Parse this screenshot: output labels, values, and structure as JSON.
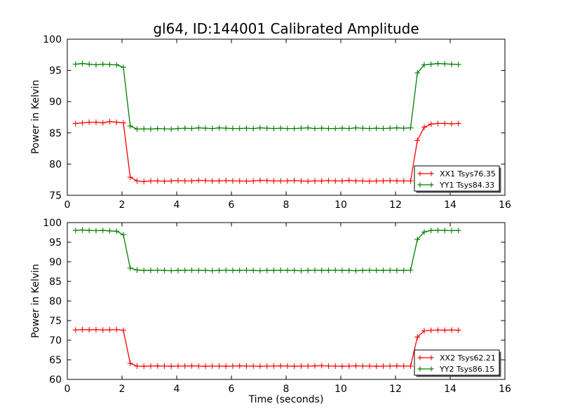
{
  "title": "gl64, ID:144001 Calibrated Amplitude",
  "xlabel": "Time (seconds)",
  "colors": {
    "xx_line": "#ff0000",
    "yy_line": "#008000",
    "axis": "#000000",
    "background": "#ffffff",
    "legend_shadow": "#555555"
  },
  "chart_data": [
    {
      "type": "line",
      "subplot": "top",
      "ylabel": "Power in Kelvin",
      "xlim": [
        0,
        16
      ],
      "ylim": [
        75,
        100
      ],
      "xticks": [
        0,
        2,
        4,
        6,
        8,
        10,
        12,
        14,
        16
      ],
      "yticks": [
        75,
        80,
        85,
        90,
        95,
        100
      ],
      "grid": false,
      "legend_position": "lower right",
      "marker": "plus",
      "x": [
        0.3,
        0.55,
        0.8,
        1.05,
        1.3,
        1.55,
        1.8,
        2.05,
        2.3,
        2.55,
        2.8,
        3.05,
        3.3,
        3.55,
        3.8,
        4.05,
        4.3,
        4.55,
        4.8,
        5.05,
        5.3,
        5.55,
        5.8,
        6.05,
        6.3,
        6.55,
        6.8,
        7.05,
        7.3,
        7.55,
        7.8,
        8.05,
        8.3,
        8.55,
        8.8,
        9.05,
        9.3,
        9.55,
        9.8,
        10.05,
        10.3,
        10.55,
        10.8,
        11.05,
        11.3,
        11.55,
        11.8,
        12.05,
        12.3,
        12.55,
        12.8,
        13.05,
        13.3,
        13.55,
        13.8,
        14.05,
        14.3
      ],
      "series": [
        {
          "name": "XX1",
          "legend": "XX1 Tsys76.35",
          "tsys": 76.35,
          "color": "#ff0000",
          "values": [
            86.5,
            86.6,
            86.7,
            86.7,
            86.6,
            86.8,
            86.7,
            86.6,
            77.9,
            77.3,
            77.2,
            77.3,
            77.3,
            77.25,
            77.3,
            77.35,
            77.3,
            77.3,
            77.4,
            77.35,
            77.3,
            77.3,
            77.35,
            77.3,
            77.3,
            77.25,
            77.3,
            77.4,
            77.35,
            77.3,
            77.3,
            77.3,
            77.35,
            77.3,
            77.25,
            77.3,
            77.3,
            77.35,
            77.3,
            77.3,
            77.4,
            77.3,
            77.3,
            77.25,
            77.3,
            77.3,
            77.35,
            77.3,
            77.3,
            77.3,
            83.8,
            85.9,
            86.4,
            86.5,
            86.5,
            86.45,
            86.5
          ]
        },
        {
          "name": "YY1",
          "legend": "YY1 Tsys84.33",
          "tsys": 84.33,
          "color": "#008000",
          "values": [
            96.0,
            96.1,
            96.0,
            95.9,
            96.0,
            95.95,
            95.9,
            95.5,
            86.1,
            85.6,
            85.65,
            85.6,
            85.7,
            85.65,
            85.6,
            85.7,
            85.75,
            85.7,
            85.8,
            85.75,
            85.7,
            85.8,
            85.75,
            85.7,
            85.7,
            85.75,
            85.7,
            85.8,
            85.75,
            85.7,
            85.75,
            85.7,
            85.7,
            85.75,
            85.8,
            85.7,
            85.75,
            85.7,
            85.7,
            85.75,
            85.7,
            85.8,
            85.75,
            85.7,
            85.75,
            85.7,
            85.75,
            85.8,
            85.75,
            85.8,
            94.6,
            95.9,
            96.0,
            96.1,
            96.05,
            96.0,
            95.95
          ]
        }
      ]
    },
    {
      "type": "line",
      "subplot": "bottom",
      "ylabel": "Power in Kelvin",
      "xlim": [
        0,
        16
      ],
      "ylim": [
        60,
        100
      ],
      "xticks": [
        0,
        2,
        4,
        6,
        8,
        10,
        12,
        14,
        16
      ],
      "yticks": [
        60,
        65,
        70,
        75,
        80,
        85,
        90,
        95,
        100
      ],
      "grid": false,
      "legend_position": "lower right",
      "marker": "plus",
      "x": [
        0.3,
        0.55,
        0.8,
        1.05,
        1.3,
        1.55,
        1.8,
        2.05,
        2.3,
        2.55,
        2.8,
        3.05,
        3.3,
        3.55,
        3.8,
        4.05,
        4.3,
        4.55,
        4.8,
        5.05,
        5.3,
        5.55,
        5.8,
        6.05,
        6.3,
        6.55,
        6.8,
        7.05,
        7.3,
        7.55,
        7.8,
        8.05,
        8.3,
        8.55,
        8.8,
        9.05,
        9.3,
        9.55,
        9.8,
        10.05,
        10.3,
        10.55,
        10.8,
        11.05,
        11.3,
        11.55,
        11.8,
        12.05,
        12.3,
        12.55,
        12.8,
        13.05,
        13.3,
        13.55,
        13.8,
        14.05,
        14.3
      ],
      "series": [
        {
          "name": "XX2",
          "legend": "XX2 Tsys62.21",
          "tsys": 62.21,
          "color": "#ff0000",
          "values": [
            72.6,
            72.7,
            72.65,
            72.7,
            72.6,
            72.65,
            72.7,
            72.55,
            64.1,
            63.4,
            63.35,
            63.4,
            63.45,
            63.4,
            63.35,
            63.4,
            63.4,
            63.45,
            63.4,
            63.35,
            63.4,
            63.4,
            63.35,
            63.4,
            63.45,
            63.4,
            63.4,
            63.35,
            63.4,
            63.4,
            63.45,
            63.4,
            63.35,
            63.4,
            63.4,
            63.45,
            63.5,
            63.4,
            63.4,
            63.35,
            63.4,
            63.45,
            63.4,
            63.4,
            63.35,
            63.4,
            63.4,
            63.45,
            63.4,
            63.4,
            70.8,
            72.4,
            72.5,
            72.6,
            72.55,
            72.6,
            72.55
          ]
        },
        {
          "name": "YY2",
          "legend": "YY2 Tsys86.15",
          "tsys": 86.15,
          "color": "#008000",
          "values": [
            98.0,
            98.1,
            98.0,
            97.95,
            98.0,
            97.9,
            97.8,
            96.9,
            88.4,
            87.9,
            87.8,
            87.8,
            87.85,
            87.8,
            87.75,
            87.8,
            87.8,
            87.85,
            87.8,
            87.8,
            87.75,
            87.8,
            87.85,
            87.8,
            87.8,
            87.85,
            87.8,
            87.75,
            87.8,
            87.8,
            87.85,
            87.8,
            87.8,
            87.75,
            87.8,
            87.85,
            87.8,
            87.8,
            87.85,
            87.8,
            87.8,
            87.75,
            87.8,
            87.85,
            87.8,
            87.8,
            87.85,
            87.8,
            87.8,
            87.85,
            95.7,
            97.6,
            98.0,
            98.05,
            98.0,
            97.95,
            98.0
          ]
        }
      ]
    }
  ]
}
